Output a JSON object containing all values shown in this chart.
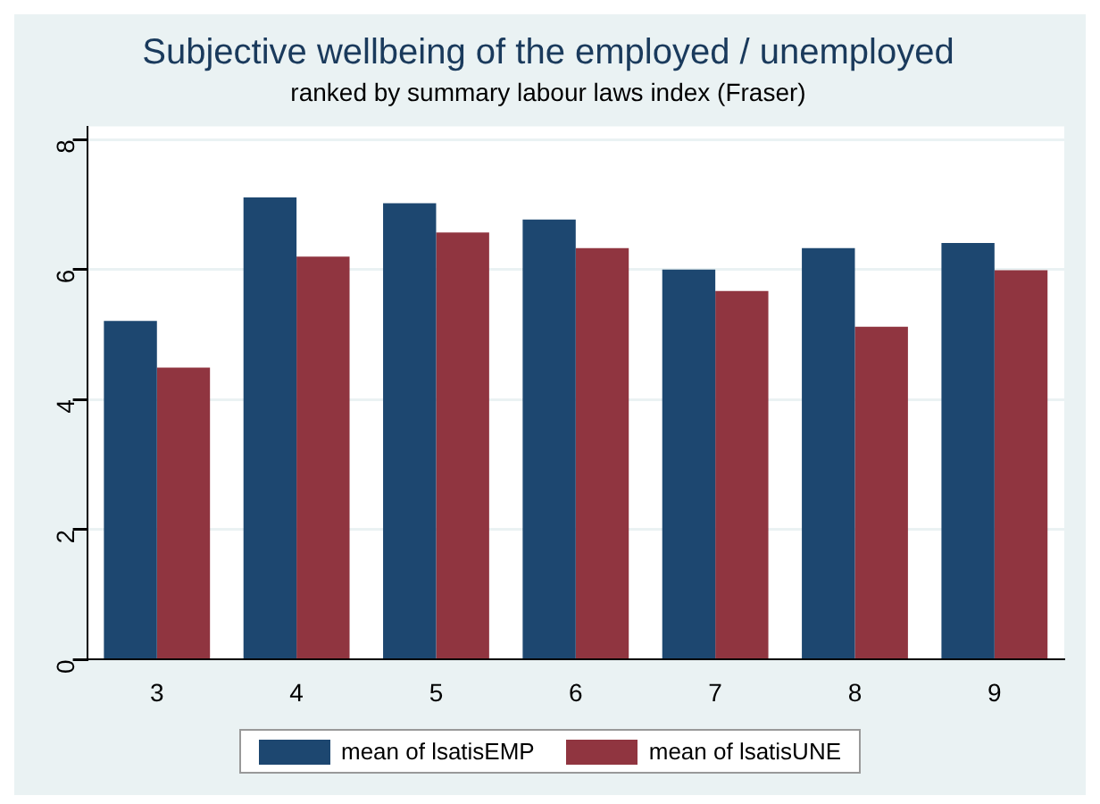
{
  "chart_data": {
    "type": "bar",
    "title": "Subjective wellbeing of the employed / unemployed",
    "subtitle": "ranked by summary labour laws index (Fraser)",
    "categories": [
      "3",
      "4",
      "5",
      "6",
      "7",
      "8",
      "9"
    ],
    "series": [
      {
        "name": "mean of lsatisEMP",
        "color": "#1d4770",
        "values": [
          5.21,
          7.11,
          7.02,
          6.77,
          6.0,
          6.33,
          6.41
        ]
      },
      {
        "name": "mean of lsatisUNE",
        "color": "#903540",
        "values": [
          4.49,
          6.2,
          6.57,
          6.33,
          5.67,
          5.12,
          5.99
        ]
      }
    ],
    "ylim": [
      0,
      8.2
    ],
    "yticks": [
      0,
      2,
      4,
      6,
      8
    ],
    "grid": "y",
    "legend": "bottom"
  }
}
